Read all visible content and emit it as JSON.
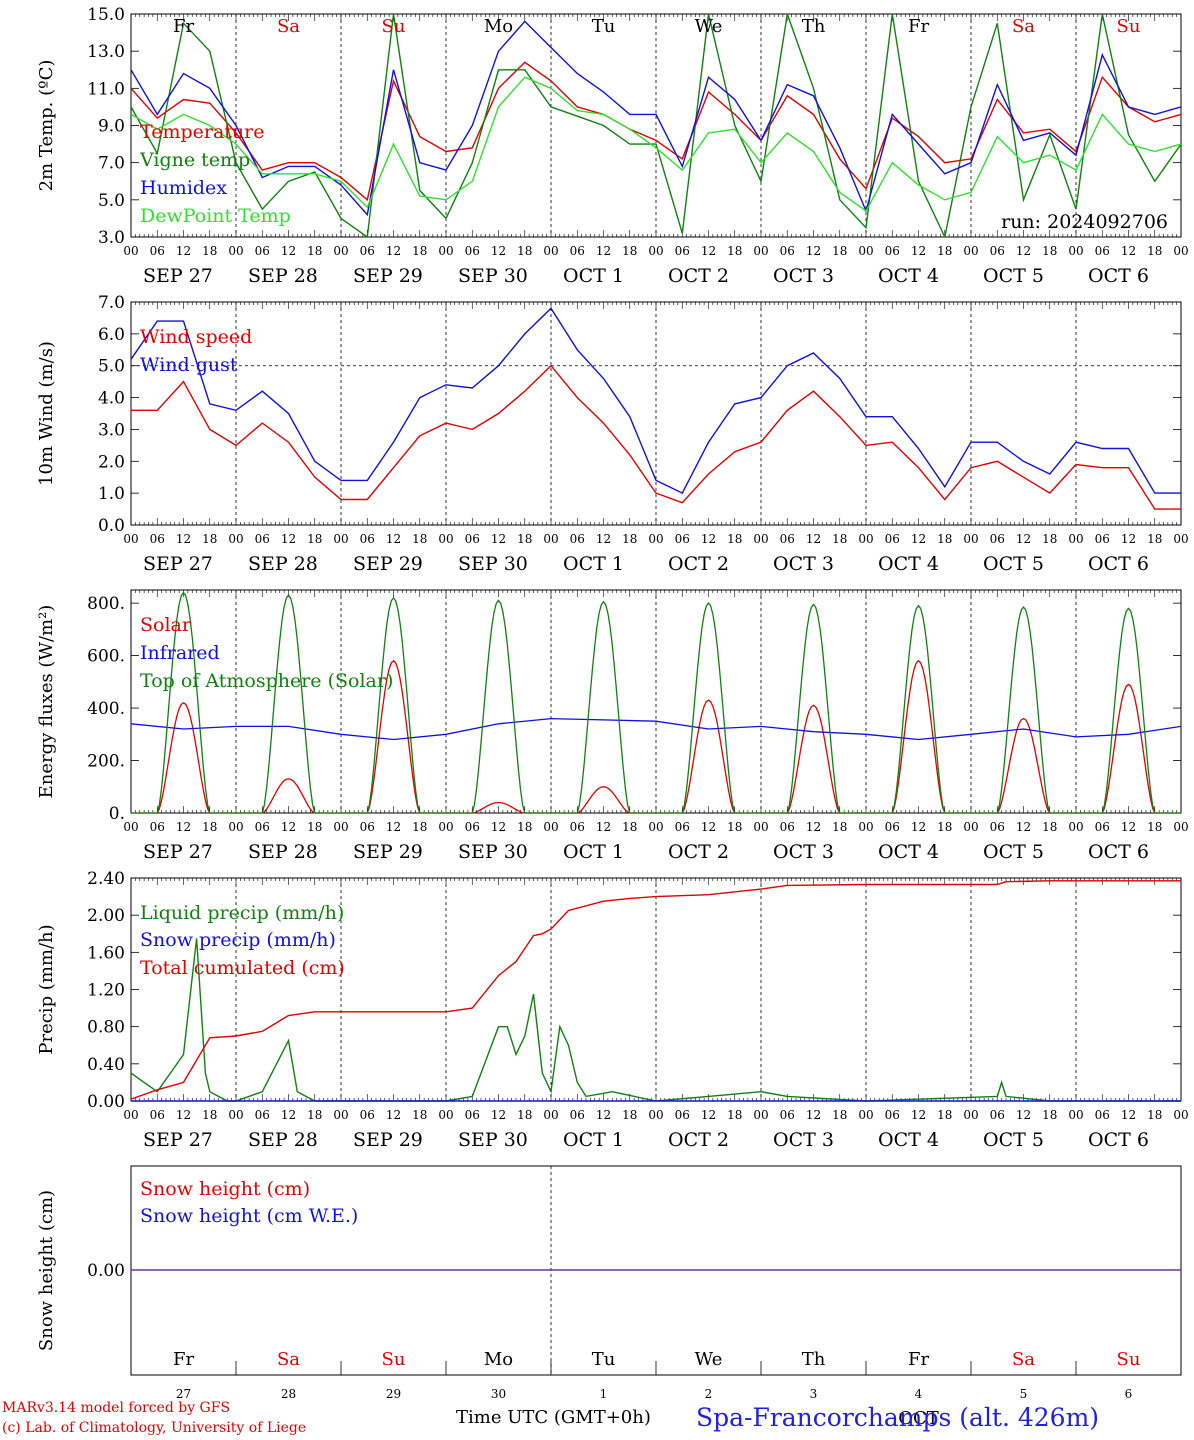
{
  "run_label": "run: 2024092706",
  "footer": {
    "model": "MARv3.14 model forced by GFS",
    "credit": "(c) Lab. of Climatology, University of Liege",
    "time_label": "Time UTC (GMT+0h)",
    "location": "Spa-Francorchamps (alt. 426m)"
  },
  "colors": {
    "red": "#e00000",
    "green": "#108010",
    "blue": "#1010e0",
    "lightgreen": "#30e030",
    "purple": "#7030a0"
  },
  "day_names": [
    "Fr",
    "Sa",
    "Su",
    "Mo",
    "Tu",
    "We",
    "Th",
    "Fr",
    "Sa",
    "Su"
  ],
  "weekend_day_names": [
    "Sa",
    "Su"
  ],
  "hour_ticks": [
    "00",
    "06",
    "12",
    "18"
  ],
  "last_hour_tick": "00",
  "date_labels": [
    "SEP 27",
    "SEP 28",
    "SEP 29",
    "SEP 30",
    "OCT  1",
    "OCT  2",
    "OCT  3",
    "OCT  4",
    "OCT  5",
    "OCT  6"
  ],
  "bottom_day_numbers": [
    "27",
    "28",
    "29",
    "30",
    "1",
    "2",
    "3",
    "4",
    "5",
    "6"
  ],
  "month_marker": "OCT",
  "chart_data": [
    {
      "type": "line",
      "ylabel": "2m Temp. (ºC)",
      "ylim": [
        3.0,
        15.0
      ],
      "yticks": [
        "3.0",
        "5.0",
        "7.0",
        "9.0",
        "11.0",
        "13.0",
        "15.0"
      ],
      "x_unit": "hours since SEP 27 00 UTC",
      "series": [
        {
          "name": "Temperature",
          "color": "red",
          "x": [
            0,
            6,
            12,
            18,
            24,
            30,
            36,
            42,
            48,
            54,
            60,
            66,
            72,
            78,
            84,
            90,
            96,
            102,
            108,
            114,
            120,
            126,
            132,
            138,
            144,
            150,
            156,
            162,
            168,
            174,
            180,
            186,
            192,
            198,
            204,
            210,
            216,
            222,
            228,
            234,
            240
          ],
          "values": [
            11.0,
            9.4,
            10.4,
            10.2,
            8.6,
            6.6,
            7.0,
            7.0,
            6.2,
            5.0,
            11.4,
            8.4,
            7.6,
            7.8,
            11.0,
            12.4,
            11.4,
            10.0,
            9.6,
            8.8,
            8.2,
            7.2,
            10.8,
            9.6,
            8.2,
            10.6,
            9.6,
            7.2,
            5.6,
            9.4,
            8.4,
            7.0,
            7.2,
            10.4,
            8.6,
            8.8,
            7.6,
            11.6,
            10.0,
            9.2,
            9.6
          ]
        },
        {
          "name": "Vigne temp",
          "color": "green",
          "x": [
            0,
            6,
            12,
            18,
            24,
            30,
            36,
            42,
            48,
            54,
            60,
            66,
            72,
            78,
            84,
            90,
            96,
            102,
            108,
            114,
            120,
            126,
            132,
            138,
            144,
            150,
            156,
            162,
            168,
            174,
            180,
            186,
            192,
            198,
            204,
            210,
            216,
            222,
            228,
            234,
            240
          ],
          "values": [
            10.0,
            7.5,
            14.5,
            13.0,
            7.0,
            4.5,
            6.0,
            6.5,
            4.0,
            3.0,
            15.0,
            5.5,
            4.0,
            7.0,
            12.0,
            12.0,
            10.0,
            9.5,
            9.0,
            8.0,
            8.0,
            3.2,
            15.0,
            9.0,
            6.0,
            15.0,
            11.0,
            5.0,
            3.5,
            15.0,
            6.0,
            3.0,
            10.0,
            14.5,
            5.0,
            8.5,
            4.5,
            15.0,
            8.5,
            6.0,
            8.0
          ]
        },
        {
          "name": "Humidex",
          "color": "blue",
          "x": [
            0,
            6,
            12,
            18,
            24,
            30,
            36,
            42,
            48,
            54,
            60,
            66,
            72,
            78,
            84,
            90,
            96,
            102,
            108,
            114,
            120,
            126,
            132,
            138,
            144,
            150,
            156,
            162,
            168,
            174,
            180,
            186,
            192,
            198,
            204,
            210,
            216,
            222,
            228,
            234,
            240
          ],
          "values": [
            12.0,
            9.6,
            11.8,
            11.0,
            9.0,
            6.2,
            6.8,
            6.8,
            5.8,
            4.2,
            12.0,
            7.0,
            6.6,
            9.0,
            13.0,
            14.6,
            13.2,
            11.8,
            10.8,
            9.6,
            9.6,
            6.8,
            11.6,
            10.4,
            8.2,
            11.2,
            10.6,
            7.8,
            4.4,
            9.6,
            8.0,
            6.4,
            7.0,
            11.2,
            8.2,
            8.6,
            7.4,
            12.8,
            10.0,
            9.6,
            10.0
          ]
        },
        {
          "name": "DewPoint Temp",
          "color": "lightgreen",
          "x": [
            0,
            6,
            12,
            18,
            24,
            30,
            36,
            42,
            48,
            54,
            60,
            66,
            72,
            78,
            84,
            90,
            96,
            102,
            108,
            114,
            120,
            126,
            132,
            138,
            144,
            150,
            156,
            162,
            168,
            174,
            180,
            186,
            192,
            198,
            204,
            210,
            216,
            222,
            228,
            234,
            240
          ],
          "values": [
            9.6,
            8.8,
            9.6,
            9.0,
            8.0,
            6.4,
            6.4,
            6.4,
            6.0,
            4.6,
            8.0,
            5.2,
            5.0,
            6.0,
            10.0,
            11.6,
            11.0,
            9.8,
            9.6,
            8.8,
            7.8,
            6.6,
            8.6,
            8.8,
            7.0,
            8.6,
            7.6,
            5.4,
            4.4,
            7.0,
            5.8,
            5.0,
            5.4,
            8.4,
            7.0,
            7.4,
            6.6,
            9.6,
            8.0,
            7.6,
            8.0
          ]
        }
      ]
    },
    {
      "type": "line",
      "ylabel": "10m Wind (m/s)",
      "ylim": [
        0.0,
        7.0
      ],
      "yticks": [
        "0.0",
        "1.0",
        "2.0",
        "3.0",
        "4.0",
        "5.0",
        "6.0",
        "7.0"
      ],
      "series": [
        {
          "name": "Wind speed",
          "color": "red",
          "x": [
            0,
            6,
            12,
            18,
            24,
            30,
            36,
            42,
            48,
            54,
            60,
            66,
            72,
            78,
            84,
            90,
            96,
            102,
            108,
            114,
            120,
            126,
            132,
            138,
            144,
            150,
            156,
            162,
            168,
            174,
            180,
            186,
            192,
            198,
            204,
            210,
            216,
            222,
            228,
            234,
            240
          ],
          "values": [
            3.6,
            3.6,
            4.5,
            3.0,
            2.5,
            3.2,
            2.6,
            1.5,
            0.8,
            0.8,
            1.8,
            2.8,
            3.2,
            3.0,
            3.5,
            4.2,
            5.0,
            4.0,
            3.2,
            2.2,
            1.0,
            0.7,
            1.6,
            2.3,
            2.6,
            3.6,
            4.2,
            3.4,
            2.5,
            2.6,
            1.8,
            0.8,
            1.8,
            2.0,
            1.5,
            1.0,
            1.9,
            1.8,
            1.8,
            0.5,
            0.5
          ]
        },
        {
          "name": "Wind gust",
          "color": "blue",
          "x": [
            0,
            6,
            12,
            18,
            24,
            30,
            36,
            42,
            48,
            54,
            60,
            66,
            72,
            78,
            84,
            90,
            96,
            102,
            108,
            114,
            120,
            126,
            132,
            138,
            144,
            150,
            156,
            162,
            168,
            174,
            180,
            186,
            192,
            198,
            204,
            210,
            216,
            222,
            228,
            234,
            240
          ],
          "values": [
            5.2,
            6.4,
            6.4,
            3.8,
            3.6,
            4.2,
            3.5,
            2.0,
            1.4,
            1.4,
            2.6,
            4.0,
            4.4,
            4.3,
            5.0,
            6.0,
            6.8,
            5.5,
            4.6,
            3.4,
            1.4,
            1.0,
            2.6,
            3.8,
            4.0,
            5.0,
            5.4,
            4.6,
            3.4,
            3.4,
            2.4,
            1.2,
            2.6,
            2.6,
            2.0,
            1.6,
            2.6,
            2.4,
            2.4,
            1.0,
            1.0
          ]
        }
      ],
      "ref_line": 5.0
    },
    {
      "type": "line",
      "ylabel": "Energy fluxes (W/m²)",
      "ylim": [
        0,
        850
      ],
      "yticks": [
        "0.",
        "200.",
        "400.",
        "600.",
        "800."
      ],
      "series": [
        {
          "name": "Solar",
          "color": "red",
          "peaks": [
            420,
            130,
            580,
            40,
            100,
            430,
            410,
            580,
            360,
            490
          ]
        },
        {
          "name": "Infrared",
          "color": "blue",
          "x": [
            0,
            12,
            24,
            36,
            48,
            60,
            72,
            84,
            96,
            108,
            120,
            132,
            144,
            156,
            168,
            180,
            192,
            204,
            216,
            228,
            240
          ],
          "values": [
            340,
            320,
            330,
            330,
            300,
            280,
            300,
            340,
            360,
            355,
            350,
            320,
            330,
            310,
            300,
            280,
            300,
            320,
            290,
            300,
            330
          ]
        },
        {
          "name": "Top of Atmosphere (Solar)",
          "color": "green",
          "peaks": [
            840,
            830,
            820,
            810,
            805,
            800,
            795,
            790,
            785,
            780
          ]
        }
      ]
    },
    {
      "type": "line",
      "ylabel": "Precip (mm/h)",
      "ylim": [
        0.0,
        2.4
      ],
      "yticks": [
        "0.00",
        "0.40",
        "0.80",
        "1.20",
        "1.60",
        "2.00",
        "2.40"
      ],
      "series": [
        {
          "name": "Liquid precip (mm/h)",
          "color": "green",
          "x": [
            0,
            3,
            6,
            9,
            12,
            15,
            17,
            18,
            20,
            22,
            24,
            30,
            36,
            38,
            40,
            42,
            48,
            60,
            72,
            78,
            84,
            86,
            88,
            90,
            92,
            94,
            96,
            98,
            100,
            102,
            104,
            110,
            120,
            132,
            144,
            150,
            168,
            198,
            199,
            200,
            210,
            240
          ],
          "values": [
            0.3,
            0.2,
            0.1,
            0.3,
            0.5,
            1.75,
            0.3,
            0.1,
            0.05,
            0.0,
            0.0,
            0.1,
            0.65,
            0.1,
            0.05,
            0.0,
            0.0,
            0.0,
            0.0,
            0.05,
            0.8,
            0.8,
            0.5,
            0.7,
            1.15,
            0.3,
            0.1,
            0.8,
            0.6,
            0.2,
            0.05,
            0.1,
            0.0,
            0.05,
            0.1,
            0.05,
            0.0,
            0.05,
            0.2,
            0.05,
            0.0,
            0.0
          ]
        },
        {
          "name": "Snow precip (mm/h)",
          "color": "blue",
          "x": [
            0,
            240
          ],
          "values": [
            0.0,
            0.0
          ]
        },
        {
          "name": "Total cumulated (cm)",
          "color": "red",
          "x": [
            0,
            6,
            12,
            18,
            24,
            30,
            36,
            42,
            48,
            60,
            72,
            78,
            84,
            88,
            92,
            94,
            96,
            100,
            108,
            114,
            120,
            132,
            144,
            150,
            168,
            198,
            200,
            210,
            240
          ],
          "values": [
            0.02,
            0.12,
            0.2,
            0.68,
            0.7,
            0.75,
            0.92,
            0.96,
            0.96,
            0.96,
            0.96,
            1.0,
            1.35,
            1.5,
            1.78,
            1.8,
            1.85,
            2.05,
            2.15,
            2.18,
            2.2,
            2.22,
            2.28,
            2.32,
            2.33,
            2.33,
            2.36,
            2.37,
            2.37
          ]
        }
      ]
    },
    {
      "type": "line",
      "ylabel": "Snow height (cm)",
      "yticks": [
        "0.00"
      ],
      "series": [
        {
          "name": "Snow height (cm)",
          "color": "red",
          "x": [
            0,
            240
          ],
          "values": [
            0.0,
            0.0
          ]
        },
        {
          "name": "Snow height (cm W.E.)",
          "color": "blue",
          "x": [
            0,
            240
          ],
          "values": [
            0.0,
            0.0
          ]
        }
      ]
    }
  ]
}
